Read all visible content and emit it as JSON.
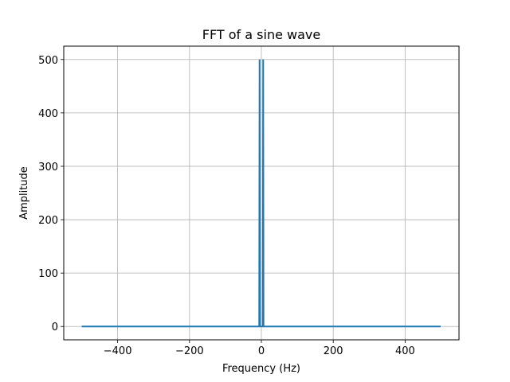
{
  "chart_data": {
    "type": "line",
    "title": "FFT of a sine wave",
    "xlabel": "Frequency (Hz)",
    "ylabel": "Amplitude",
    "xlim": [
      -550,
      550
    ],
    "ylim": [
      -25,
      525
    ],
    "xticks": [
      -400,
      -200,
      0,
      200,
      400
    ],
    "xtick_labels": [
      "−400",
      "−200",
      "0",
      "200",
      "400"
    ],
    "yticks": [
      0,
      100,
      200,
      300,
      400,
      500
    ],
    "ytick_labels": [
      "0",
      "100",
      "200",
      "300",
      "400",
      "500"
    ],
    "grid": true,
    "legend": "none",
    "series": [
      {
        "color": "#1f77b4",
        "x": [
          -500,
          -6,
          -5,
          -4,
          4,
          5,
          6,
          499
        ],
        "y": [
          0,
          0,
          500,
          0,
          0,
          500,
          0,
          0
        ]
      }
    ]
  }
}
